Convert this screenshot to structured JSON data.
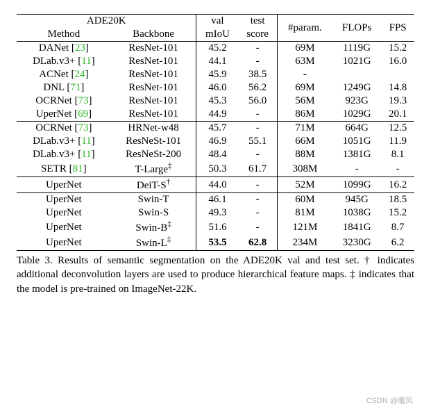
{
  "header": {
    "dataset": "ADE20K",
    "col_method": "Method",
    "col_backbone": "Backbone",
    "col_val": "val",
    "col_miou": "mIoU",
    "col_test": "test",
    "col_score": "score",
    "col_param": "#param.",
    "col_flops": "FLOPs",
    "col_fps": "FPS"
  },
  "cite_color": "#27b827",
  "groups": [
    {
      "rows": [
        {
          "method": "DANet",
          "cite": "23",
          "backbone": "ResNet-101",
          "val": "45.2",
          "test": "-",
          "param": "69M",
          "flops": "1119G",
          "fps": "15.2"
        },
        {
          "method": "DLab.v3+",
          "cite": "11",
          "backbone": "ResNet-101",
          "val": "44.1",
          "test": "-",
          "param": "63M",
          "flops": "1021G",
          "fps": "16.0"
        },
        {
          "method": "ACNet",
          "cite": "24",
          "backbone": "ResNet-101",
          "val": "45.9",
          "test": "38.5",
          "param": "-",
          "flops": "",
          "fps": ""
        },
        {
          "method": "DNL",
          "cite": "71",
          "backbone": "ResNet-101",
          "val": "46.0",
          "test": "56.2",
          "param": "69M",
          "flops": "1249G",
          "fps": "14.8"
        },
        {
          "method": "OCRNet",
          "cite": "73",
          "backbone": "ResNet-101",
          "val": "45.3",
          "test": "56.0",
          "param": "56M",
          "flops": "923G",
          "fps": "19.3"
        },
        {
          "method": "UperNet",
          "cite": "69",
          "backbone": "ResNet-101",
          "val": "44.9",
          "test": "-",
          "param": "86M",
          "flops": "1029G",
          "fps": "20.1"
        }
      ]
    },
    {
      "rows": [
        {
          "method": "OCRNet",
          "cite": "73",
          "backbone": "HRNet-w48",
          "val": "45.7",
          "test": "-",
          "param": "71M",
          "flops": "664G",
          "fps": "12.5"
        },
        {
          "method": "DLab.v3+",
          "cite": "11",
          "backbone": "ResNeSt-101",
          "val": "46.9",
          "test": "55.1",
          "param": "66M",
          "flops": "1051G",
          "fps": "11.9"
        },
        {
          "method": "DLab.v3+",
          "cite": "11",
          "backbone": "ResNeSt-200",
          "val": "48.4",
          "test": "-",
          "param": "88M",
          "flops": "1381G",
          "fps": "8.1"
        },
        {
          "method": "SETR",
          "cite": "81",
          "backbone": "T-Large",
          "backbone_sup": "‡",
          "val": "50.3",
          "test": "61.7",
          "param": "308M",
          "flops": "-",
          "fps": "-"
        }
      ]
    },
    {
      "rows": [
        {
          "method": "UperNet",
          "backbone": "DeiT-S",
          "backbone_sup": "†",
          "val": "44.0",
          "test": "-",
          "param": "52M",
          "flops": "1099G",
          "fps": "16.2"
        }
      ]
    },
    {
      "rows": [
        {
          "method": "UperNet",
          "backbone": "Swin-T",
          "val": "46.1",
          "test": "-",
          "param": "60M",
          "flops": "945G",
          "fps": "18.5"
        },
        {
          "method": "UperNet",
          "backbone": "Swin-S",
          "val": "49.3",
          "test": "-",
          "param": "81M",
          "flops": "1038G",
          "fps": "15.2"
        },
        {
          "method": "UperNet",
          "backbone": "Swin-B",
          "backbone_sup": "‡",
          "val": "51.6",
          "test": "-",
          "param": "121M",
          "flops": "1841G",
          "fps": "8.7"
        },
        {
          "method": "UperNet",
          "backbone": "Swin-L",
          "backbone_sup": "‡",
          "val": "53.5",
          "test": "62.8",
          "bold": true,
          "param": "234M",
          "flops": "3230G",
          "fps": "6.2"
        }
      ]
    }
  ],
  "caption": "Table 3. Results of semantic segmentation on the ADE20K val and test set. † indicates additional deconvolution layers are used to produce hierarchical feature maps. ‡ indicates that the model is pre-trained on ImageNet-22K.",
  "watermark": "CSDN @暖风"
}
